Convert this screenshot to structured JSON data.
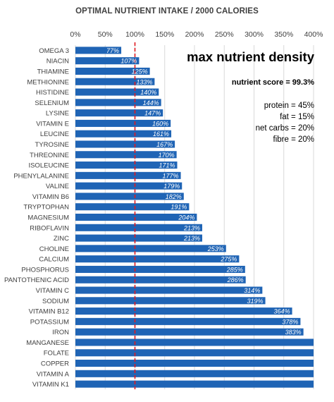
{
  "chart_data": {
    "type": "bar",
    "orientation": "horizontal",
    "title": "OPTIMAL NUTRIENT INTAKE / 2000 CALORIES",
    "xlabel": "",
    "ylabel": "",
    "xlim": [
      0,
      400
    ],
    "x_ticks": [
      "0%",
      "50%",
      "100%",
      "150%",
      "200%",
      "250%",
      "300%",
      "350%",
      "400%"
    ],
    "x_axis_position": "top",
    "grid": true,
    "reference_line": {
      "value": 100,
      "style": "dashed",
      "color": "#e0191f"
    },
    "bar_color": "#1f64b5",
    "categories": [
      "OMEGA 3",
      "NIACIN",
      "THIAMINE",
      "METHIONINE",
      "HISTIDINE",
      "SELENIUM",
      "LYSINE",
      "VITAMIN E",
      "LEUCINE",
      "TYROSINE",
      "THREONINE",
      "ISOLEUCINE",
      "PHENYLALANINE",
      "VALINE",
      "VITAMIN B6",
      "TRYPTOPHAN",
      "MAGNESIUM",
      "RIBOFLAVIN",
      "ZINC",
      "CHOLINE",
      "CALCIUM",
      "PHOSPHORUS",
      "PANTOTHENIC ACID",
      "VITAMIN C",
      "SODIUM",
      "VITAMIN B12",
      "POTASSIUM",
      "IRON",
      "MANGANESE",
      "FOLATE",
      "COPPER",
      "VITAMIN A",
      "VITAMIN K1"
    ],
    "values": [
      77,
      107,
      125,
      133,
      140,
      144,
      147,
      160,
      161,
      167,
      170,
      171,
      177,
      179,
      182,
      191,
      204,
      213,
      213,
      253,
      275,
      285,
      286,
      314,
      319,
      364,
      378,
      383,
      400,
      400,
      400,
      400,
      400
    ],
    "data_labels": [
      "77%",
      "107%",
      "125%",
      "133%",
      "140%",
      "144%",
      "147%",
      "160%",
      "161%",
      "167%",
      "170%",
      "171%",
      "177%",
      "179%",
      "182%",
      "191%",
      "204%",
      "213%",
      "213%",
      "253%",
      "275%",
      "285%",
      "286%",
      "314%",
      "319%",
      "364%",
      "378%",
      "383%",
      "",
      "",
      "",
      "",
      ""
    ],
    "annotations": {
      "heading": "max nutrient density",
      "score": "nutrient score = 99.3%",
      "macros": [
        "protein = 45%",
        "fat = 15%",
        "net carbs = 20%",
        "fibre = 20%"
      ]
    }
  }
}
